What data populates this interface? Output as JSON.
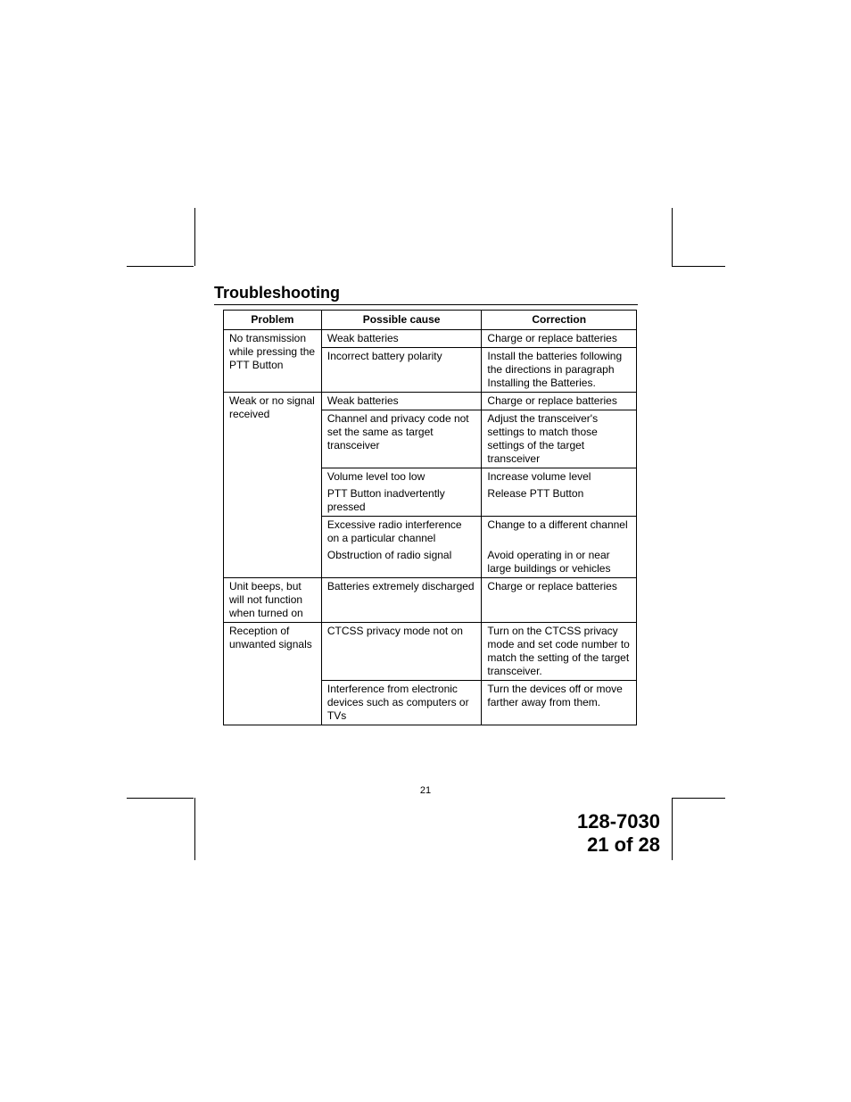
{
  "title": "Troubleshooting",
  "headers": {
    "problem": "Problem",
    "cause": "Possible cause",
    "correction": "Correction"
  },
  "rows": [
    {
      "problem": "No transmission while pressing the PTT Button",
      "sub": [
        {
          "cause": "Weak batteries",
          "correction": "Charge or replace batteries"
        },
        {
          "cause": "Incorrect battery polarity",
          "correction": "Install the batteries following the directions in paragraph Installing the Batteries."
        }
      ]
    },
    {
      "problem": "Weak or no signal received",
      "sub": [
        {
          "cause": "Weak batteries",
          "correction": "Charge or replace batteries"
        },
        {
          "cause": "Channel and privacy code not set the same as target transceiver",
          "correction": "Adjust  the transceiver's settings to match those settings of the target transceiver"
        },
        {
          "cause": "Volume level too low",
          "correction": "Increase volume level"
        },
        {
          "cause": "PTT Button inadvertently pressed",
          "correction": "Release PTT Button"
        },
        {
          "cause": "Excessive radio interference on a particular channel",
          "correction": "Change to a different channel"
        },
        {
          "cause": "Obstruction of radio signal",
          "correction": "Avoid operating in or near large buildings or vehicles"
        }
      ]
    },
    {
      "problem": "Unit beeps, but will not function when turned on",
      "sub": [
        {
          "cause": "Batteries extremely discharged",
          "correction": "Charge or replace batteries"
        }
      ]
    },
    {
      "problem": "Reception of unwanted signals",
      "sub": [
        {
          "cause": "CTCSS privacy mode not on",
          "correction": "Turn on the CTCSS privacy mode and set code number to match the setting of the target transceiver."
        },
        {
          "cause": "Interference from electronic devices such as computers or TVs",
          "correction": "Turn the devices off or move farther away from them."
        }
      ]
    }
  ],
  "pageNumber": "21",
  "footerLine1": "128-7030",
  "footerLine2": "21 of 28"
}
